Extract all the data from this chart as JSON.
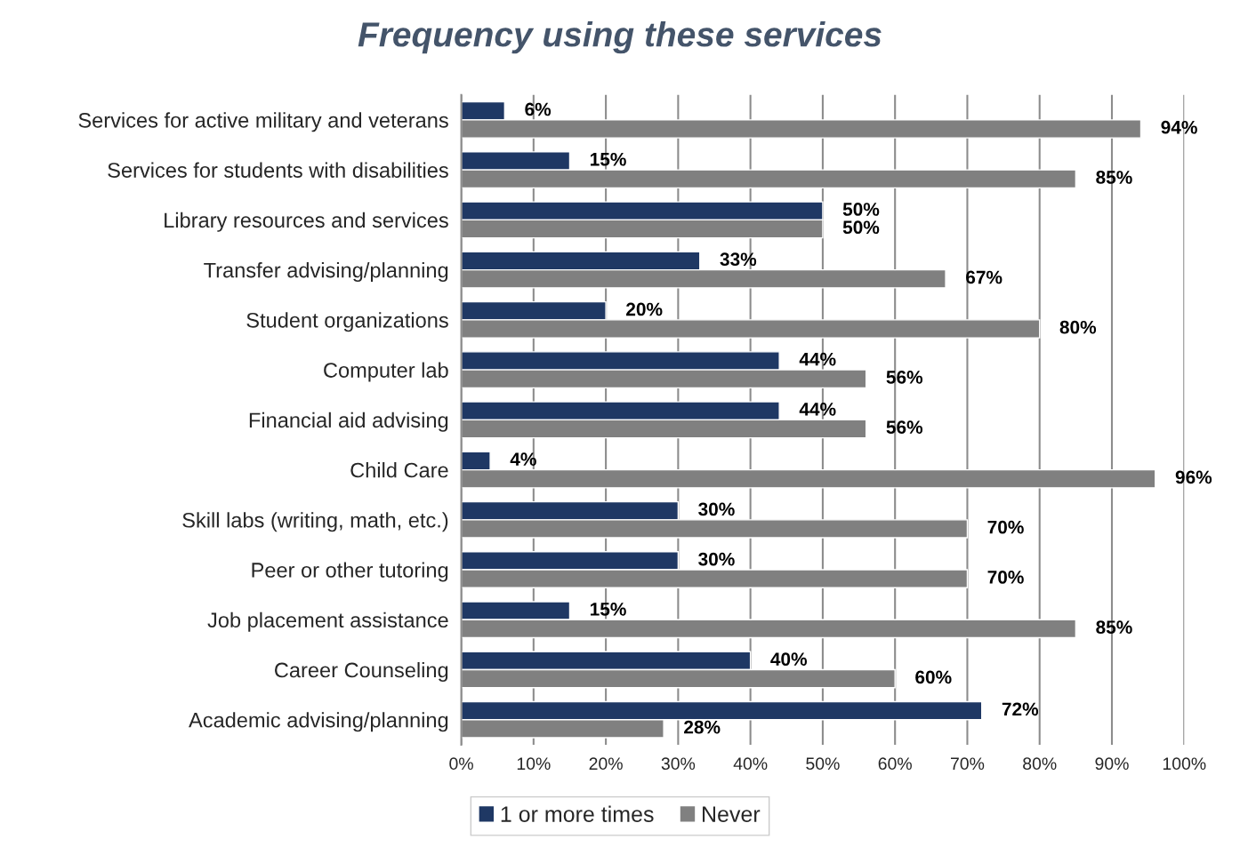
{
  "chart_data": {
    "type": "bar",
    "orientation": "horizontal",
    "title": "Frequency using these services",
    "categories": [
      "Services for active military and veterans",
      "Services for students with disabilities",
      "Library resources and services",
      "Transfer advising/planning",
      "Student organizations",
      "Computer lab",
      "Financial aid advising",
      "Child Care",
      "Skill labs (writing, math, etc.)",
      "Peer or other tutoring",
      "Job placement assistance",
      "Career Counseling",
      "Academic advising/planning"
    ],
    "series": [
      {
        "name": "1 or more times",
        "color": "#1f3864",
        "values": [
          6,
          15,
          50,
          33,
          20,
          44,
          44,
          4,
          30,
          30,
          15,
          40,
          72
        ],
        "value_labels": [
          "6%",
          "15%",
          "50%",
          "33%",
          "20%",
          "44%",
          "44%",
          "4%",
          "30%",
          "30%",
          "15%",
          "40%",
          "72%"
        ]
      },
      {
        "name": "Never",
        "color": "#808080",
        "values": [
          94,
          85,
          50,
          67,
          80,
          56,
          56,
          96,
          70,
          70,
          85,
          60,
          28
        ],
        "value_labels": [
          "94%",
          "85%",
          "50%",
          "67%",
          "80%",
          "56%",
          "56%",
          "96%",
          "70%",
          "70%",
          "85%",
          "60%",
          "28%"
        ]
      }
    ],
    "xlim": [
      0,
      100
    ],
    "xticks": [
      {
        "value": 0,
        "label": "0%"
      },
      {
        "value": 10,
        "label": "10%"
      },
      {
        "value": 20,
        "label": "20%"
      },
      {
        "value": 30,
        "label": "30%"
      },
      {
        "value": 40,
        "label": "40%"
      },
      {
        "value": 50,
        "label": "50%"
      },
      {
        "value": 60,
        "label": "60%"
      },
      {
        "value": 70,
        "label": "70%"
      },
      {
        "value": 80,
        "label": "80%"
      },
      {
        "value": 90,
        "label": "90%"
      },
      {
        "value": 100,
        "label": "100%"
      }
    ],
    "grid": "x",
    "legend": "bottom"
  }
}
